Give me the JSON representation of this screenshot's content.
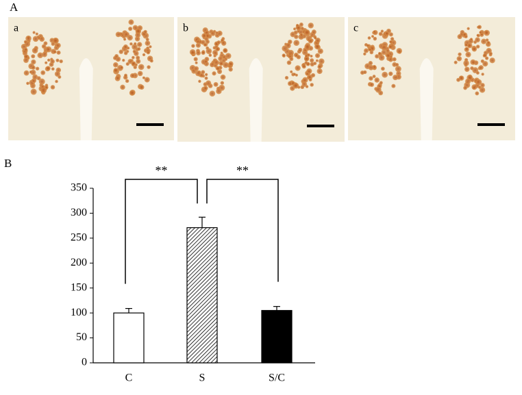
{
  "panel_labels": [
    "A",
    "B"
  ],
  "images": [
    "a",
    "b",
    "c"
  ],
  "chart_data": {
    "type": "bar",
    "categories": [
      "C",
      "S",
      "S/C"
    ],
    "values": [
      100,
      271,
      105
    ],
    "errors": [
      9,
      21,
      8
    ],
    "colors": [
      "#ffffff",
      "#ffffff",
      "#000000"
    ],
    "patterns": [
      "solid",
      "hatched",
      "solid"
    ],
    "ylim": [
      0,
      350
    ],
    "yticks": [
      0,
      50,
      100,
      150,
      200,
      250,
      300,
      350
    ],
    "annotations": [
      "**",
      "**"
    ]
  }
}
